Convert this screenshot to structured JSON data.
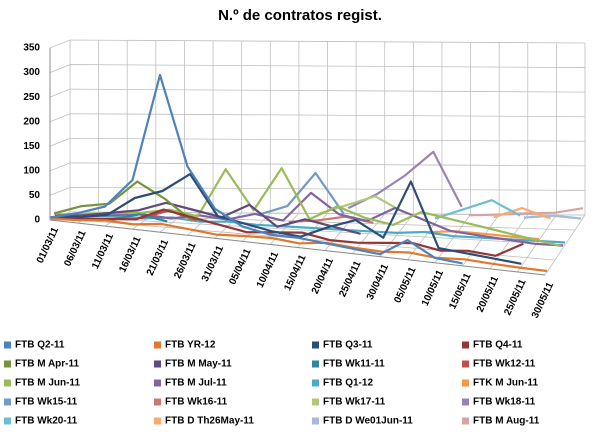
{
  "chart_data": {
    "type": "line3d",
    "title": "N.º de contratos regist.",
    "categories": [
      "01/03/11",
      "06/03/11",
      "11/03/11",
      "16/03/11",
      "21/03/11",
      "26/03/11",
      "31/03/11",
      "05/04/11",
      "10/04/11",
      "15/04/11",
      "20/04/11",
      "25/04/11",
      "30/04/11",
      "05/05/11",
      "10/05/11",
      "15/05/11",
      "20/05/11",
      "25/05/11",
      "30/05/11"
    ],
    "ylim": [
      0,
      350
    ],
    "yticks": [
      0,
      50,
      100,
      150,
      200,
      250,
      300,
      350
    ],
    "grid": true,
    "legend": "bottom",
    "series": [
      {
        "name": "FTB Q2-11",
        "color": "#4f81bd",
        "values": [
          5,
          20,
          40,
          100,
          320,
          140,
          60,
          30,
          20,
          20,
          15,
          10,
          5,
          40,
          10,
          5,
          null,
          null,
          null
        ]
      },
      {
        "name": "FTB YR-12",
        "color": "#e2782d",
        "values": [
          2,
          5,
          10,
          8,
          15,
          10,
          5,
          8,
          10,
          5,
          12,
          8,
          6,
          10,
          5,
          8,
          5,
          3,
          2
        ]
      },
      {
        "name": "FTB Q3-11",
        "color": "#2c4d75",
        "values": [
          3,
          10,
          20,
          60,
          80,
          120,
          40,
          30,
          20,
          15,
          40,
          60,
          30,
          150,
          20,
          15,
          10,
          5,
          null
        ]
      },
      {
        "name": "FTB Q4-11",
        "color": "#943634",
        "values": [
          1,
          5,
          10,
          15,
          40,
          30,
          20,
          10,
          15,
          20,
          10,
          10,
          15,
          20,
          10,
          15,
          10,
          40,
          null
        ]
      },
      {
        "name": "FTB M Apr-11",
        "color": "#77933c",
        "values": [
          10,
          30,
          40,
          90,
          60,
          20,
          null,
          null,
          null,
          null,
          null,
          null,
          null,
          null,
          null,
          null,
          null,
          null,
          null
        ]
      },
      {
        "name": "FTB M May-11",
        "color": "#604a7b",
        "values": [
          5,
          10,
          20,
          30,
          50,
          40,
          30,
          60,
          20,
          40,
          30,
          20,
          null,
          null,
          null,
          null,
          null,
          null,
          null
        ]
      },
      {
        "name": "FTB Wk11-11",
        "color": "#31859c",
        "values": [
          null,
          null,
          5,
          20,
          10,
          null,
          null,
          null,
          null,
          null,
          null,
          null,
          null,
          null,
          null,
          null,
          null,
          null,
          null
        ]
      },
      {
        "name": "FTB Wk12-11",
        "color": "#c0504d",
        "values": [
          null,
          null,
          null,
          10,
          30,
          15,
          null,
          null,
          null,
          null,
          null,
          null,
          null,
          null,
          null,
          null,
          null,
          null,
          null
        ]
      },
      {
        "name": "FTB M Jun-11",
        "color": "#9bbb59",
        "values": [
          5,
          10,
          15,
          20,
          30,
          20,
          120,
          40,
          130,
          30,
          60,
          40,
          30,
          60,
          50,
          40,
          30,
          20,
          10
        ]
      },
      {
        "name": "FTB M Jul-11",
        "color": "#8064a2",
        "values": [
          2,
          5,
          10,
          15,
          10,
          20,
          15,
          30,
          20,
          80,
          40,
          30,
          60,
          40,
          20,
          15,
          10,
          5,
          5
        ]
      },
      {
        "name": "FTB Q1-12",
        "color": "#4bacc6",
        "values": [
          2,
          3,
          5,
          5,
          10,
          5,
          8,
          5,
          5,
          5,
          5,
          5,
          5,
          10,
          5,
          5,
          5,
          5,
          5
        ]
      },
      {
        "name": "FTK M Jun-11",
        "color": "#f79646",
        "values": [
          null,
          null,
          null,
          null,
          null,
          null,
          null,
          null,
          null,
          null,
          null,
          null,
          null,
          5,
          10,
          8,
          5,
          3,
          null
        ]
      },
      {
        "name": "FTB Wk15-11",
        "color": "#7399c6",
        "values": [
          null,
          null,
          null,
          null,
          null,
          null,
          null,
          20,
          40,
          110,
          30,
          null,
          null,
          null,
          null,
          null,
          null,
          null,
          null
        ]
      },
      {
        "name": "FTB Wk16-11",
        "color": "#d07471",
        "values": [
          null,
          null,
          null,
          null,
          null,
          null,
          null,
          null,
          5,
          10,
          20,
          10,
          null,
          null,
          null,
          null,
          null,
          null,
          null
        ]
      },
      {
        "name": "FTB Wk17-11",
        "color": "#afc97a",
        "values": [
          null,
          null,
          null,
          null,
          null,
          null,
          null,
          null,
          null,
          20,
          40,
          60,
          30,
          null,
          null,
          null,
          null,
          null,
          null
        ]
      },
      {
        "name": "FTB Wk18-11",
        "color": "#9983b5",
        "values": [
          null,
          null,
          null,
          null,
          null,
          null,
          null,
          null,
          null,
          null,
          30,
          60,
          100,
          150,
          40,
          null,
          null,
          null,
          null
        ]
      },
      {
        "name": "FTB Wk20-11",
        "color": "#6fbdd1",
        "values": [
          null,
          null,
          null,
          null,
          null,
          null,
          null,
          null,
          null,
          null,
          null,
          null,
          null,
          10,
          30,
          50,
          20,
          null,
          null
        ]
      },
      {
        "name": "FTB D Th26May-11",
        "color": "#f9ab6b",
        "values": [
          null,
          null,
          null,
          null,
          null,
          null,
          null,
          null,
          null,
          null,
          null,
          null,
          null,
          null,
          null,
          10,
          30,
          10,
          null
        ]
      },
      {
        "name": "FTB D We01Jun-11",
        "color": "#a5b9d9",
        "values": [
          null,
          null,
          null,
          null,
          null,
          null,
          null,
          null,
          null,
          null,
          null,
          null,
          null,
          null,
          null,
          null,
          5,
          10,
          5
        ]
      },
      {
        "name": "FTB M Aug-11",
        "color": "#d7a3a2",
        "values": [
          null,
          null,
          null,
          null,
          null,
          null,
          null,
          null,
          null,
          null,
          null,
          null,
          null,
          null,
          3,
          5,
          8,
          10,
          20
        ]
      }
    ]
  }
}
